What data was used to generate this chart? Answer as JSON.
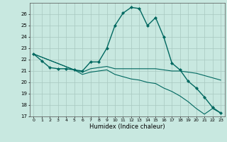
{
  "xlabel": "Humidex (Indice chaleur)",
  "background_color": "#c8e8e0",
  "grid_color": "#a8c8c0",
  "line_color": "#006860",
  "xlim": [
    -0.5,
    23.5
  ],
  "ylim": [
    17,
    27
  ],
  "yticks": [
    17,
    18,
    19,
    20,
    21,
    22,
    23,
    24,
    25,
    26
  ],
  "xticks": [
    0,
    1,
    2,
    3,
    4,
    5,
    6,
    7,
    8,
    9,
    10,
    11,
    12,
    13,
    14,
    15,
    16,
    17,
    18,
    19,
    20,
    21,
    22,
    23
  ],
  "series": [
    {
      "x": [
        0,
        1,
        2,
        3,
        4,
        5,
        6,
        7,
        8,
        9,
        10,
        11,
        12,
        13,
        14,
        15,
        16,
        17,
        18,
        19,
        20,
        21,
        22,
        23
      ],
      "y": [
        22.5,
        21.9,
        21.3,
        21.2,
        21.2,
        21.1,
        21.0,
        21.8,
        21.8,
        23.0,
        25.0,
        26.1,
        26.6,
        26.5,
        25.0,
        25.7,
        24.0,
        21.7,
        21.1,
        20.1,
        19.5,
        18.7,
        17.8,
        17.3
      ],
      "marker": "D",
      "markersize": 2.0,
      "linewidth": 1.0
    },
    {
      "x": [
        0,
        5,
        6,
        7,
        8,
        9,
        10,
        11,
        12,
        13,
        14,
        15,
        16,
        17,
        18,
        19,
        20,
        21,
        22,
        23
      ],
      "y": [
        22.5,
        21.1,
        20.9,
        21.2,
        21.3,
        21.4,
        21.2,
        21.2,
        21.2,
        21.2,
        21.2,
        21.2,
        21.1,
        21.0,
        21.0,
        20.9,
        20.8,
        20.6,
        20.4,
        20.2
      ],
      "marker": null,
      "linewidth": 0.8
    },
    {
      "x": [
        0,
        5,
        6,
        7,
        8,
        9,
        10,
        11,
        12,
        13,
        14,
        15,
        16,
        17,
        18,
        19,
        20,
        21,
        22,
        23
      ],
      "y": [
        22.5,
        21.1,
        20.7,
        20.9,
        21.0,
        21.1,
        20.7,
        20.5,
        20.3,
        20.2,
        20.0,
        19.9,
        19.5,
        19.2,
        18.8,
        18.3,
        17.7,
        17.2,
        17.7,
        17.3
      ],
      "marker": null,
      "linewidth": 0.8
    }
  ]
}
